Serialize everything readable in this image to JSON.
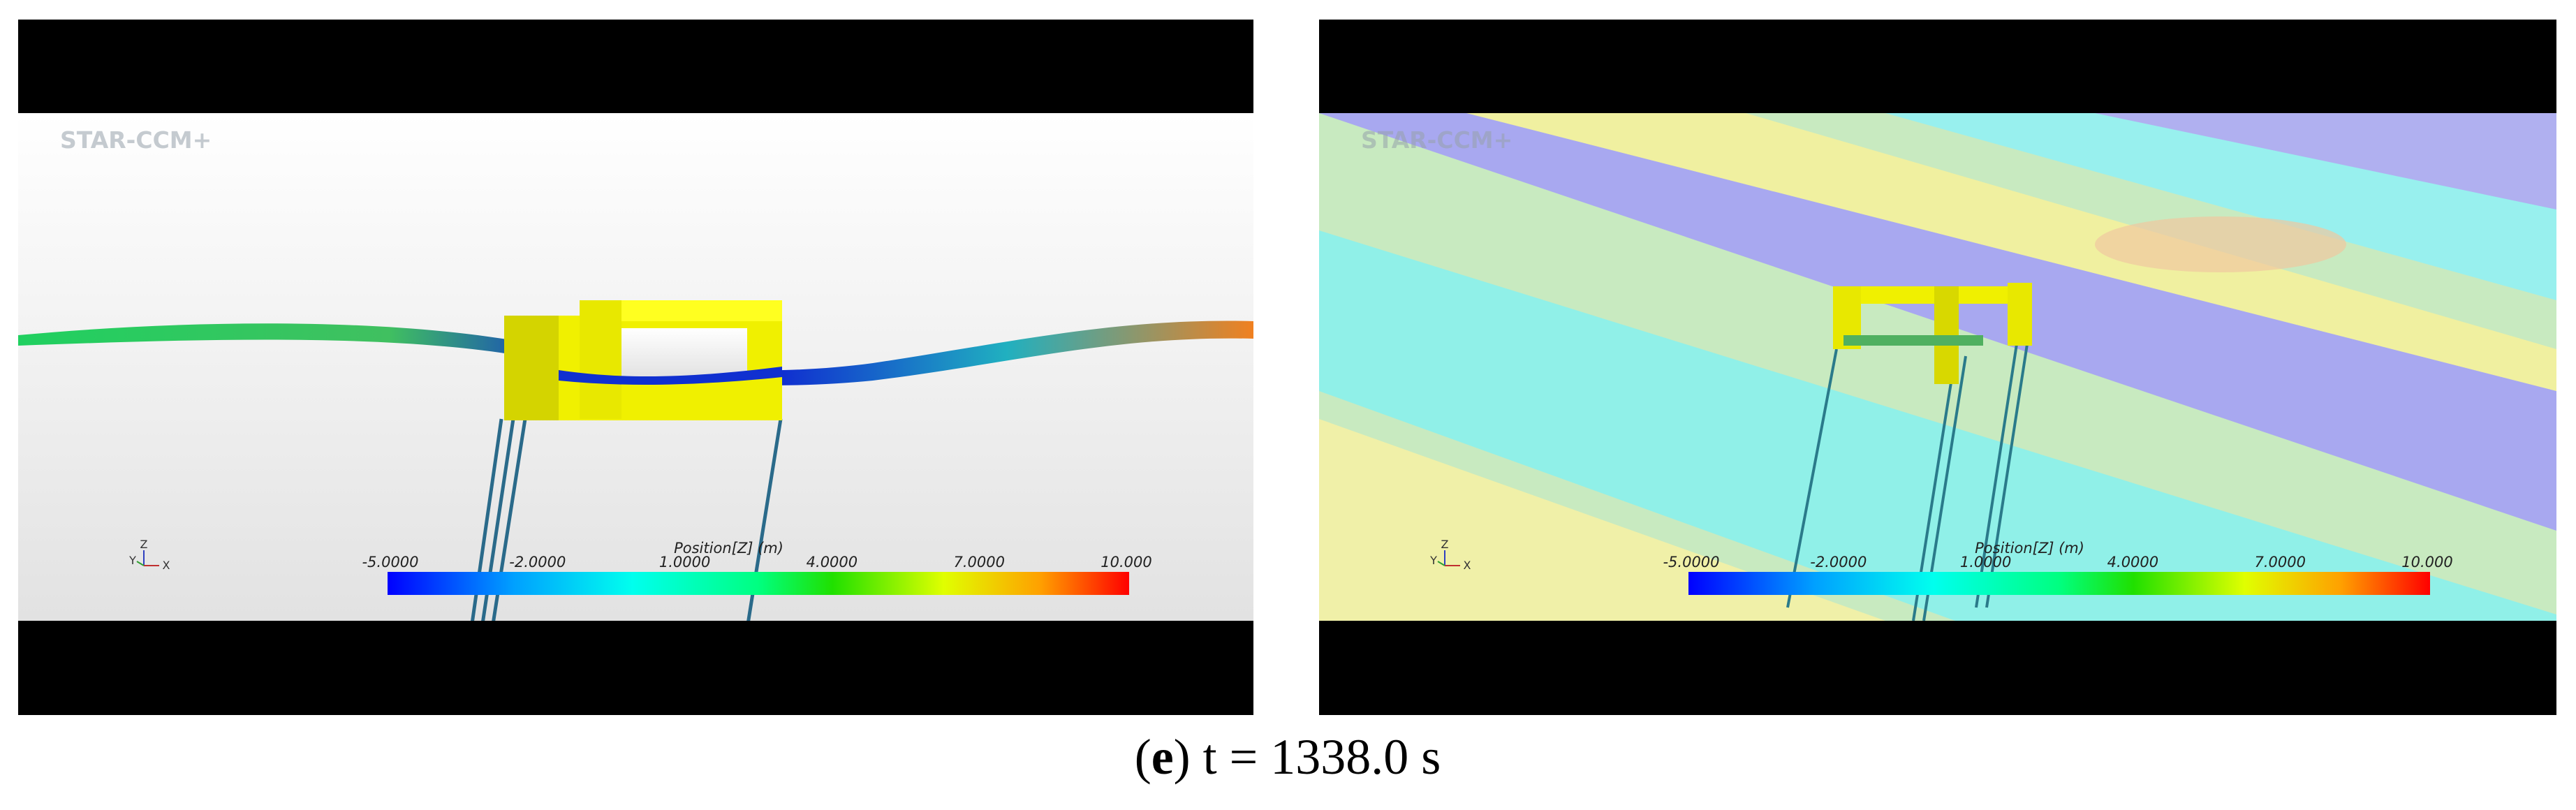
{
  "panels": [
    {
      "watermark": "STAR-CCM+",
      "axes": [
        "Z",
        "Y",
        "X"
      ],
      "colorbar": {
        "title": "Position[Z] (m)",
        "ticks": [
          "-5.0000",
          "-2.0000",
          "1.0000",
          "4.0000",
          "7.0000",
          "10.000"
        ]
      }
    },
    {
      "watermark": "STAR-CCM+",
      "axes": [
        "Z",
        "Y",
        "X"
      ],
      "colorbar": {
        "title": "Position[Z] (m)",
        "ticks": [
          "-5.0000",
          "-2.0000",
          "1.0000",
          "4.0000",
          "7.0000",
          "10.000"
        ]
      }
    }
  ],
  "caption": {
    "open": "(",
    "letter": "e",
    "rest": ") t = 1338.0 s"
  }
}
